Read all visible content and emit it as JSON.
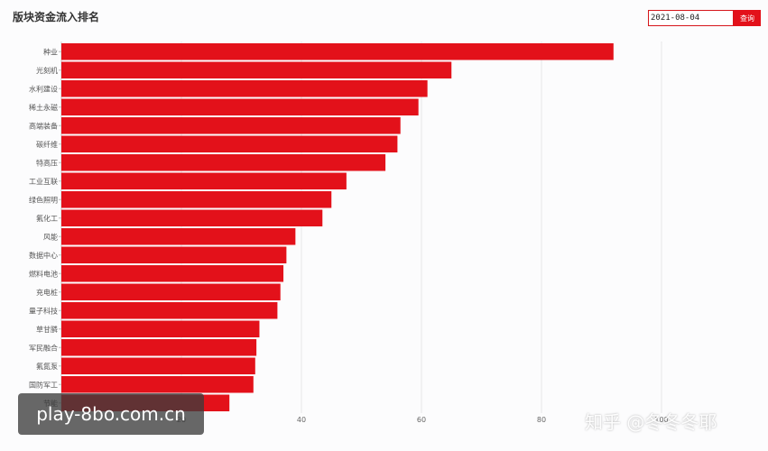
{
  "header": {
    "title": "版块资金流入排名",
    "date_value": "2021-08-04",
    "query_label": "查询"
  },
  "colors": {
    "bar": "#e3111a",
    "accent": "#d6161b",
    "grid": "#e6e6e6"
  },
  "chart_data": {
    "type": "bar",
    "orientation": "horizontal",
    "title": "版块资金流入排名",
    "categories": [
      "种业",
      "光刻机",
      "水利建设",
      "稀土永磁",
      "高端装备",
      "碳纤维",
      "特高压",
      "工业互联",
      "绿色照明",
      "氟化工",
      "风能",
      "数据中心",
      "燃料电池",
      "充电桩",
      "量子科技",
      "草甘膦",
      "军民融合",
      "氟氮泵",
      "国防军工",
      "节能"
    ],
    "values": [
      92,
      65,
      61,
      59.5,
      56.5,
      56,
      54,
      47.5,
      45,
      43.5,
      39,
      37.5,
      37,
      36.5,
      36,
      33,
      32.5,
      32.3,
      32,
      28
    ],
    "xlim": [
      0,
      100
    ],
    "xticks": [
      "20",
      "40",
      "60",
      "80",
      "100"
    ],
    "grid": true
  },
  "watermarks": {
    "url": "play-8bo.com.cn",
    "zhihu": "知乎 @冬冬冬耶"
  }
}
